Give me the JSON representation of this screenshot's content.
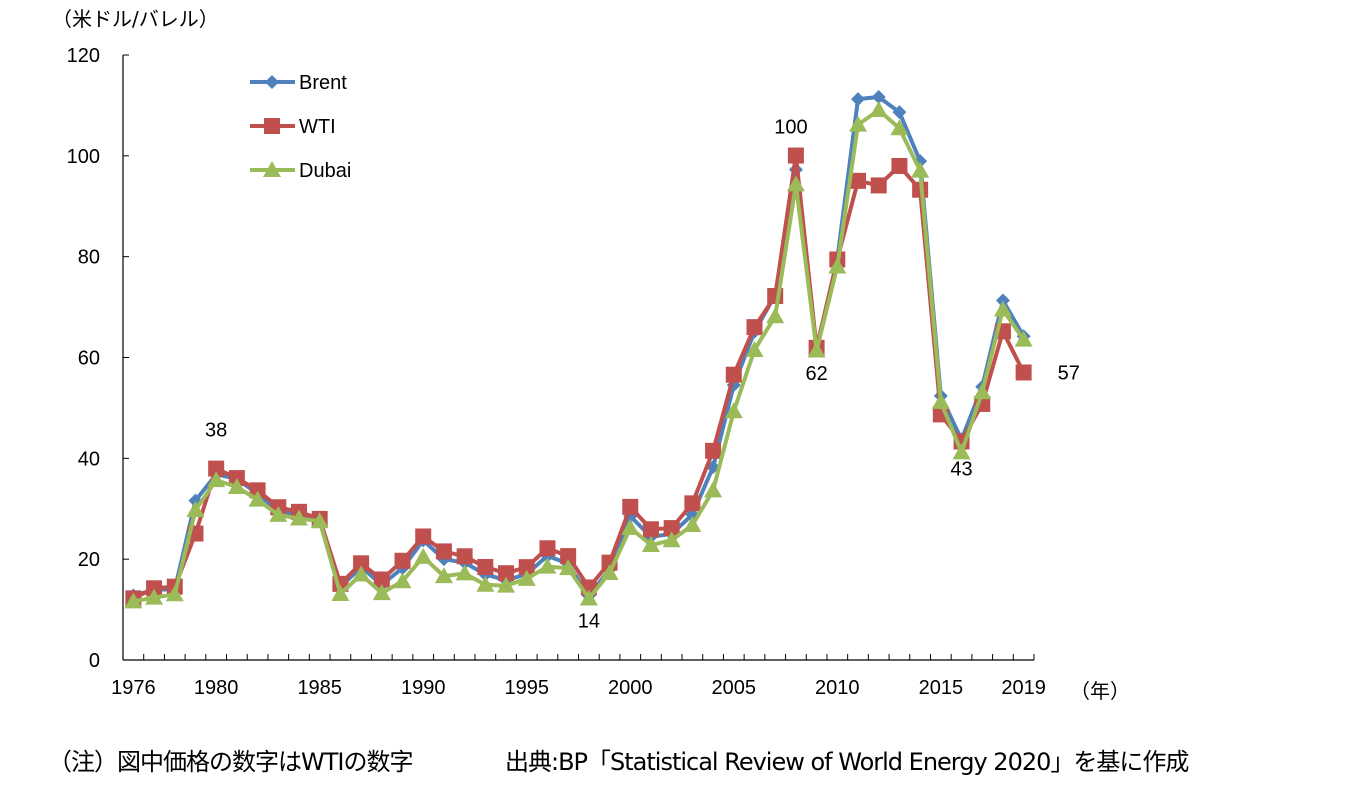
{
  "chart_data": {
    "type": "line",
    "title": "",
    "ylabel": "（米ドル/バレル）",
    "xlabel": "（年）",
    "ylim": [
      0,
      120
    ],
    "yticks": [
      0,
      20,
      40,
      60,
      80,
      100,
      120
    ],
    "xlim": [
      1976,
      2019
    ],
    "xtick_labels": [
      "1976",
      "1980",
      "1985",
      "1990",
      "1995",
      "2000",
      "2005",
      "2010",
      "2015",
      "2019"
    ],
    "grid": false,
    "legend_position": "top-left",
    "x": [
      1976,
      1977,
      1978,
      1979,
      1980,
      1981,
      1982,
      1983,
      1984,
      1985,
      1986,
      1987,
      1988,
      1989,
      1990,
      1991,
      1992,
      1993,
      1994,
      1995,
      1996,
      1997,
      1998,
      1999,
      2000,
      2001,
      2002,
      2003,
      2004,
      2005,
      2006,
      2007,
      2008,
      2009,
      2010,
      2011,
      2012,
      2013,
      2014,
      2015,
      2016,
      2017,
      2018,
      2019
    ],
    "series": [
      {
        "name": "Brent",
        "color": "#4f81bd",
        "marker": "diamond",
        "values": [
          12.8,
          13.92,
          14.02,
          31.61,
          36.83,
          35.93,
          32.97,
          29.55,
          28.78,
          27.56,
          14.43,
          18.44,
          14.92,
          18.23,
          23.73,
          20.0,
          19.32,
          16.97,
          15.82,
          17.02,
          20.67,
          19.09,
          12.72,
          17.97,
          28.5,
          24.44,
          25.02,
          28.83,
          38.27,
          54.52,
          65.14,
          72.39,
          97.26,
          61.67,
          79.5,
          111.26,
          111.67,
          108.66,
          98.95,
          52.39,
          43.73,
          54.19,
          71.31,
          64.21
        ]
      },
      {
        "name": "WTI",
        "color": "#c0504d",
        "marker": "square",
        "values": [
          12.23,
          14.22,
          14.55,
          25.08,
          37.96,
          36.08,
          33.65,
          30.3,
          29.39,
          27.99,
          15.1,
          19.18,
          15.97,
          19.68,
          24.5,
          21.54,
          20.57,
          18.45,
          17.21,
          18.42,
          22.16,
          20.61,
          14.39,
          19.31,
          30.37,
          25.93,
          26.16,
          31.07,
          41.49,
          56.59,
          66.02,
          72.2,
          100.06,
          61.92,
          79.45,
          95.04,
          94.13,
          97.99,
          93.28,
          48.71,
          43.34,
          50.79,
          65.2,
          57.03
        ]
      },
      {
        "name": "Dubai",
        "color": "#9bbb59",
        "marker": "triangle",
        "values": [
          11.63,
          12.38,
          13.03,
          29.75,
          35.69,
          34.32,
          31.8,
          28.78,
          28.06,
          27.53,
          13.1,
          16.95,
          13.27,
          15.62,
          20.45,
          16.63,
          17.17,
          14.93,
          14.74,
          16.1,
          18.52,
          18.23,
          12.21,
          17.25,
          26.2,
          22.81,
          23.74,
          26.78,
          33.64,
          49.35,
          61.5,
          68.19,
          94.34,
          61.39,
          78.06,
          106.18,
          109.08,
          105.47,
          97.07,
          51.2,
          41.19,
          53.13,
          69.51,
          63.54
        ]
      }
    ],
    "annotations": [
      {
        "x": 1980,
        "text": "38"
      },
      {
        "x": 1998,
        "text": "14"
      },
      {
        "x": 2008,
        "text": "100"
      },
      {
        "x": 2009,
        "text": "62"
      },
      {
        "x": 2016,
        "text": "43"
      },
      {
        "x": 2019,
        "text": "57"
      }
    ]
  },
  "footer": {
    "note": "（注）図中価格の数字はWTIの数字",
    "source": "出典:BP「Statistical Review of World Energy 2020」を基に作成"
  }
}
